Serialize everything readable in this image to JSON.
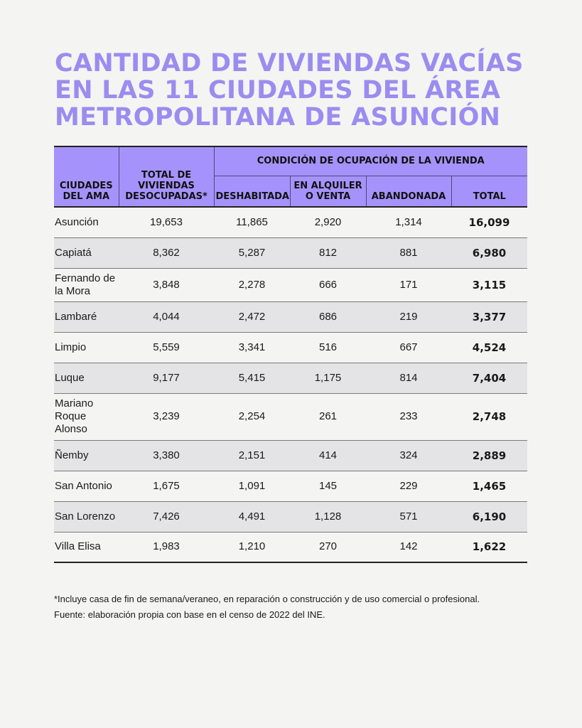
{
  "title": {
    "line1": "CANTIDAD DE VIVIENDAS VACÍAS",
    "line2": "EN LAS 11 CIUDADES DEL ÁREA",
    "line3": "METROPOLITANA DE ASUNCIÓN"
  },
  "headers": {
    "city": "CIUDADES DEL AMA",
    "total_desocupadas": "TOTAL DE VIVIENDAS DESOCUPADAS*",
    "group": "CONDICIÓN DE OCUPACIÓN DE LA VIVIENDA",
    "deshabitada": "DESHABITADA",
    "alquiler": "EN ALQUILER O VENTA",
    "abandonada": "ABANDONADA",
    "total": "TOTAL"
  },
  "rows": [
    {
      "city": "Asunción",
      "desocupadas": "19,653",
      "deshabitada": "11,865",
      "alquiler": "2,920",
      "abandonada": "1,314",
      "total": "16,099"
    },
    {
      "city": "Capiatá",
      "desocupadas": "8,362",
      "deshabitada": "5,287",
      "alquiler": "812",
      "abandonada": "881",
      "total": "6,980"
    },
    {
      "city": "Fernando de la Mora",
      "desocupadas": "3,848",
      "deshabitada": "2,278",
      "alquiler": "666",
      "abandonada": "171",
      "total": "3,115"
    },
    {
      "city": "Lambaré",
      "desocupadas": "4,044",
      "deshabitada": "2,472",
      "alquiler": "686",
      "abandonada": "219",
      "total": "3,377"
    },
    {
      "city": "Limpio",
      "desocupadas": "5,559",
      "deshabitada": "3,341",
      "alquiler": "516",
      "abandonada": "667",
      "total": "4,524"
    },
    {
      "city": "Luque",
      "desocupadas": "9,177",
      "deshabitada": "5,415",
      "alquiler": "1,175",
      "abandonada": "814",
      "total": "7,404"
    },
    {
      "city": "Mariano Roque Alonso",
      "desocupadas": "3,239",
      "deshabitada": "2,254",
      "alquiler": "261",
      "abandonada": "233",
      "total": "2,748"
    },
    {
      "city": "Ñemby",
      "desocupadas": "3,380",
      "deshabitada": "2,151",
      "alquiler": "414",
      "abandonada": "324",
      "total": "2,889"
    },
    {
      "city": "San Antonio",
      "desocupadas": "1,675",
      "deshabitada": "1,091",
      "alquiler": "145",
      "abandonada": "229",
      "total": "1,465"
    },
    {
      "city": "San Lorenzo",
      "desocupadas": "7,426",
      "deshabitada": "4,491",
      "alquiler": "1,128",
      "abandonada": "571",
      "total": "6,190"
    },
    {
      "city": "Villa Elisa",
      "desocupadas": "1,983",
      "deshabitada": "1,210",
      "alquiler": "270",
      "abandonada": "142",
      "total": "1,622"
    }
  ],
  "footnote": "*Incluye casa de fin de semana/veraneo, en reparación o construcción y de uso comercial o profesional.",
  "source": "Fuente: elaboración propia con base en el censo de 2022 del INE.",
  "colors": {
    "accent": "#9b8cf0",
    "header_bg": "#a593fb",
    "row_alt": "#e4e4e6",
    "background": "#f4f4f2"
  }
}
